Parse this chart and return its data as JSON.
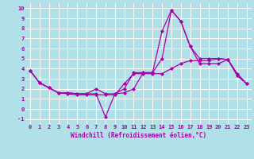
{
  "xlabel": "Windchill (Refroidissement éolien,°C)",
  "bg_color": "#b2e0e8",
  "grid_color": "#ffffff",
  "line_color": "#aa00aa",
  "marker": "D",
  "marker_size": 2.0,
  "line_width": 0.9,
  "xlim": [
    -0.5,
    23.5
  ],
  "ylim": [
    -1.5,
    10.5
  ],
  "xticks": [
    0,
    1,
    2,
    3,
    4,
    5,
    6,
    7,
    8,
    9,
    10,
    11,
    12,
    13,
    14,
    15,
    16,
    17,
    18,
    19,
    20,
    21,
    22,
    23
  ],
  "yticks": [
    -1,
    0,
    1,
    2,
    3,
    4,
    5,
    6,
    7,
    8,
    9,
    10
  ],
  "series": [
    [
      3.8,
      2.6,
      2.1,
      1.6,
      1.6,
      1.5,
      1.5,
      1.5,
      -0.8,
      1.5,
      1.6,
      2.0,
      3.6,
      3.6,
      5.0,
      9.8,
      8.7,
      6.2,
      5.0,
      5.0,
      5.0,
      4.9,
      3.3,
      2.5
    ],
    [
      3.8,
      2.6,
      2.1,
      1.6,
      1.6,
      1.5,
      1.5,
      2.0,
      1.5,
      1.5,
      2.0,
      3.6,
      3.6,
      3.6,
      7.7,
      9.8,
      8.7,
      6.2,
      4.5,
      4.5,
      4.5,
      4.9,
      3.3,
      2.5
    ],
    [
      3.8,
      2.6,
      2.1,
      1.6,
      1.5,
      1.4,
      1.4,
      1.4,
      1.4,
      1.4,
      2.5,
      3.5,
      3.5,
      3.5,
      3.5,
      4.0,
      4.5,
      4.8,
      4.8,
      4.8,
      5.0,
      4.9,
      3.5,
      2.5
    ]
  ],
  "tick_fontsize": 5.0,
  "xlabel_fontsize": 5.5
}
